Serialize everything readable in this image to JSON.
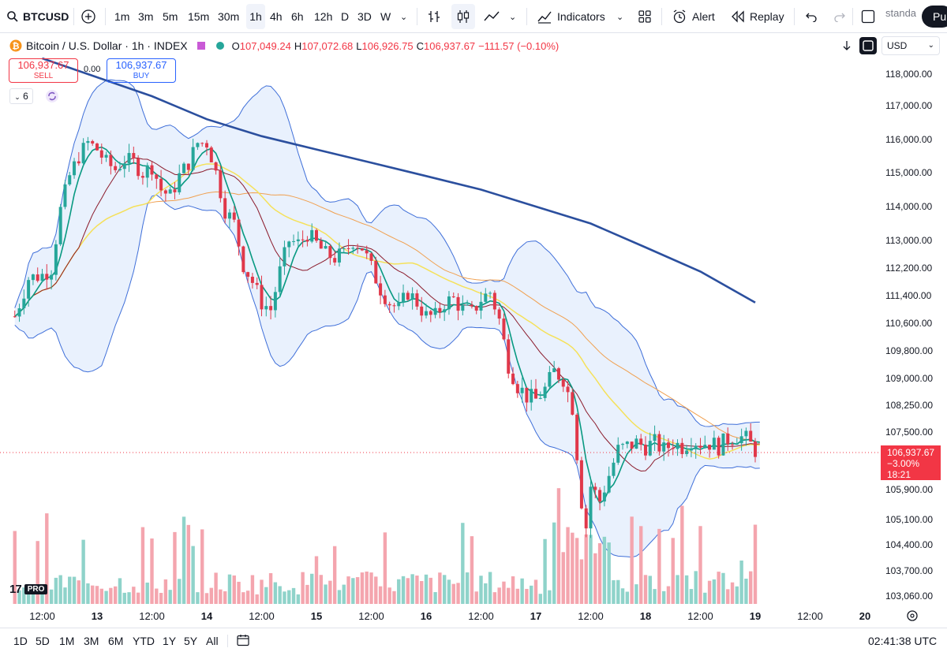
{
  "toolbar": {
    "symbol": "BTCUSD",
    "intervals": [
      "1m",
      "3m",
      "5m",
      "15m",
      "30m",
      "1h",
      "4h",
      "6h",
      "12h",
      "D",
      "3D",
      "W"
    ],
    "active_interval": "1h",
    "indicators_label": "Indicators",
    "alert_label": "Alert",
    "replay_label": "Replay",
    "layout_name": "standa",
    "publish_label": "Pu"
  },
  "legend": {
    "title": "Bitcoin / U.S. Dollar · 1h · INDEX",
    "o_label": "O",
    "o": "107,049.24",
    "h_label": "H",
    "h": "107,072.68",
    "l_label": "L",
    "l": "106,926.75",
    "c_label": "C",
    "c": "106,937.67",
    "change": "−111.57 (−0.10%)"
  },
  "trade": {
    "sell_price": "106,937.67",
    "sell_label": "SELL",
    "spread": "0.00",
    "buy_price": "106,937.67",
    "buy_label": "BUY"
  },
  "indicator_count": "6",
  "currency": "USD",
  "price_badge": {
    "price": "106,937.67",
    "change": "−3.00%",
    "countdown": "18:21"
  },
  "colors": {
    "up": "#26a69a",
    "down": "#e0384a",
    "band_fill": "#e3eefc",
    "band_line": "#3f6fd9",
    "ma200": "#2b4f9e",
    "ma_green": "#089981",
    "ma_dark": "#8b1a2b",
    "ma_yellow": "#f5e15a",
    "ma_orange": "#f0a050"
  },
  "chart_data": {
    "type": "candlestick",
    "y_ticks": [
      "118,000.00",
      "117,000.00",
      "116,000.00",
      "115,000.00",
      "114,000.00",
      "113,000.00",
      "112,200.00",
      "111,400.00",
      "110,600.00",
      "109,800.00",
      "109,000.00",
      "108,250.00",
      "107,500.00",
      "105,900.00",
      "105,100.00",
      "104,400.00",
      "103,700.00",
      "103,060.00"
    ],
    "y_tick_values": [
      118000,
      117000,
      116000,
      115000,
      114000,
      113000,
      112200,
      111400,
      110600,
      109800,
      109000,
      108250,
      107500,
      105900,
      105100,
      104400,
      103700,
      103060
    ],
    "x_ticks": [
      "12:00",
      "13",
      "12:00",
      "14",
      "12:00",
      "15",
      "12:00",
      "16",
      "12:00",
      "17",
      "12:00",
      "18",
      "12:00",
      "19",
      "12:00",
      "20"
    ],
    "x_tick_hours": [
      -12,
      0,
      12,
      24,
      36,
      48,
      60,
      72,
      84,
      96,
      108,
      120,
      132,
      144,
      156,
      168
    ],
    "price_path": [
      [
        -18,
        110800
      ],
      [
        -15,
        111900
      ],
      [
        -12,
        112000
      ],
      [
        -10,
        112200
      ],
      [
        -8,
        113900
      ],
      [
        -6,
        114900
      ],
      [
        -4,
        115500
      ],
      [
        -2,
        115900
      ],
      [
        0,
        115700
      ],
      [
        2,
        115300
      ],
      [
        4,
        115100
      ],
      [
        6,
        115400
      ],
      [
        8,
        115300
      ],
      [
        10,
        115000
      ],
      [
        12,
        115200
      ],
      [
        14,
        114500
      ],
      [
        16,
        114300
      ],
      [
        18,
        114900
      ],
      [
        20,
        115300
      ],
      [
        22,
        115900
      ],
      [
        24,
        115900
      ],
      [
        25,
        115500
      ],
      [
        26,
        115000
      ],
      [
        28,
        113900
      ],
      [
        30,
        113500
      ],
      [
        32,
        112300
      ],
      [
        34,
        111800
      ],
      [
        36,
        111200
      ],
      [
        38,
        111000
      ],
      [
        40,
        112100
      ],
      [
        42,
        113000
      ],
      [
        44,
        112900
      ],
      [
        46,
        113200
      ],
      [
        48,
        112900
      ],
      [
        50,
        112600
      ],
      [
        52,
        112500
      ],
      [
        54,
        112600
      ],
      [
        56,
        113000
      ],
      [
        58,
        112800
      ],
      [
        60,
        112200
      ],
      [
        62,
        111600
      ],
      [
        64,
        111200
      ],
      [
        66,
        111000
      ],
      [
        68,
        111500
      ],
      [
        70,
        111200
      ],
      [
        72,
        110800
      ],
      [
        74,
        110800
      ],
      [
        76,
        111200
      ],
      [
        78,
        111300
      ],
      [
        80,
        111000
      ],
      [
        82,
        110900
      ],
      [
        84,
        111300
      ],
      [
        86,
        111500
      ],
      [
        88,
        110700
      ],
      [
        90,
        109400
      ],
      [
        92,
        108800
      ],
      [
        94,
        108500
      ],
      [
        96,
        108400
      ],
      [
        98,
        108700
      ],
      [
        100,
        109200
      ],
      [
        102,
        109000
      ],
      [
        104,
        108200
      ],
      [
        106,
        105600
      ],
      [
        107,
        104900
      ],
      [
        108,
        106000
      ],
      [
        110,
        105600
      ],
      [
        112,
        106300
      ],
      [
        114,
        107000
      ],
      [
        116,
        107100
      ],
      [
        118,
        107200
      ],
      [
        120,
        107100
      ],
      [
        122,
        107200
      ],
      [
        124,
        107000
      ],
      [
        126,
        107200
      ],
      [
        128,
        107100
      ],
      [
        130,
        107300
      ],
      [
        132,
        107200
      ],
      [
        134,
        107200
      ],
      [
        136,
        107100
      ],
      [
        138,
        107300
      ],
      [
        140,
        107400
      ],
      [
        142,
        107300
      ],
      [
        144,
        107000
      ]
    ],
    "ma200_path": [
      [
        -12,
        118500
      ],
      [
        0,
        117900
      ],
      [
        12,
        117300
      ],
      [
        24,
        116600
      ],
      [
        36,
        116100
      ],
      [
        48,
        115700
      ],
      [
        60,
        115300
      ],
      [
        72,
        114900
      ],
      [
        84,
        114500
      ],
      [
        96,
        114000
      ],
      [
        108,
        113500
      ],
      [
        120,
        112800
      ],
      [
        132,
        112100
      ],
      [
        144,
        111200
      ]
    ],
    "volume_scale": "relative"
  },
  "bottom": {
    "ranges": [
      "1D",
      "5D",
      "1M",
      "3M",
      "6M",
      "YTD",
      "1Y",
      "5Y",
      "All"
    ],
    "clock": "02:41:38 UTC"
  }
}
